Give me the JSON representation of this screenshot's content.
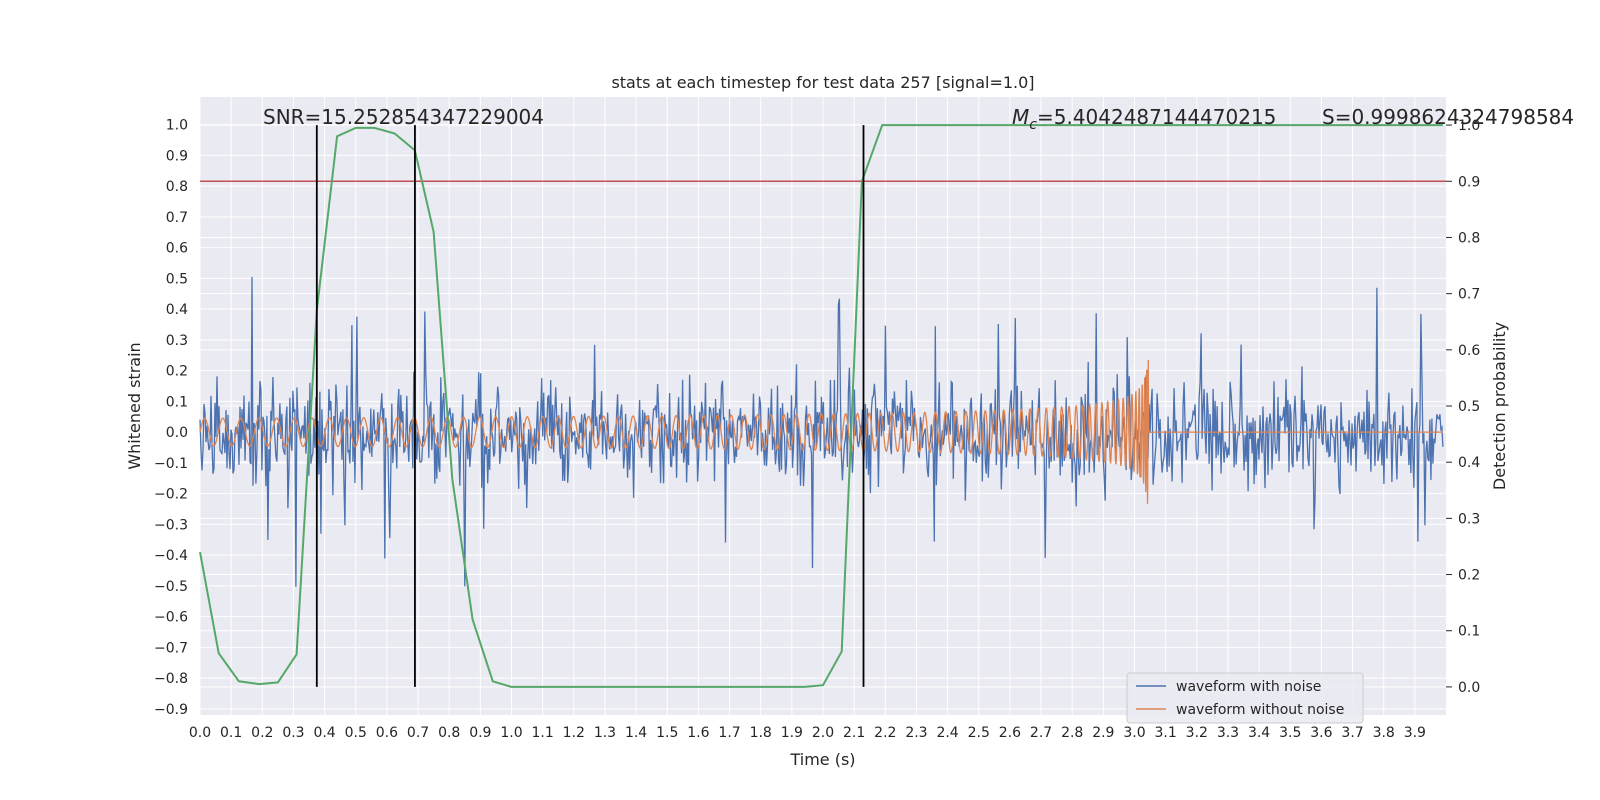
{
  "chart_data": {
    "type": "line",
    "title": "stats at each timestep for test data 257 [signal=1.0]",
    "xlabel": "Time (s)",
    "ylabel": "Whitened strain",
    "y2label": "Detection probability",
    "xlim": [
      0.0,
      4.0
    ],
    "ylim": [
      -0.92,
      1.09
    ],
    "y2lim": [
      -0.05,
      1.05
    ],
    "grid": true,
    "legend_position": "bottom-right",
    "x_ticks": [
      0.0,
      0.1,
      0.2,
      0.3,
      0.4,
      0.5,
      0.6,
      0.7,
      0.8,
      0.9,
      1.0,
      1.1,
      1.2,
      1.3,
      1.4,
      1.5,
      1.6,
      1.7,
      1.8,
      1.9,
      2.0,
      2.1,
      2.2,
      2.3,
      2.4,
      2.5,
      2.6,
      2.7,
      2.8,
      2.9,
      3.0,
      3.1,
      3.2,
      3.3,
      3.4,
      3.5,
      3.6,
      3.7,
      3.8,
      3.9
    ],
    "y_ticks": [
      1.0,
      0.9,
      0.8,
      0.7,
      0.6,
      0.5,
      0.4,
      0.3,
      0.2,
      0.1,
      0.0,
      -0.1,
      -0.2,
      -0.3,
      -0.4,
      -0.5,
      -0.6,
      -0.7,
      -0.8,
      -0.9
    ],
    "y2_ticks": [
      1.0,
      0.9,
      0.8,
      0.7,
      0.6,
      0.5,
      0.4,
      0.3,
      0.2,
      0.1,
      0.0
    ],
    "annotations": {
      "snr": "SNR=15.252854347229004",
      "mc_symbol": "M",
      "mc_subscript": "c",
      "mc_value": "=5.4042487144470215",
      "s_text": "S=0.9998624324798584"
    },
    "threshold_y2": 0.9,
    "vertical_lines_x": [
      0.375,
      0.69,
      2.13
    ],
    "detection_probability": {
      "x": [
        0.0,
        0.06,
        0.125,
        0.19,
        0.25,
        0.31,
        0.375,
        0.44,
        0.5,
        0.56,
        0.625,
        0.69,
        0.75,
        0.81,
        0.875,
        0.94,
        1.0,
        1.94,
        2.0,
        2.06,
        2.125,
        2.19,
        3.99
      ],
      "y": [
        0.24,
        0.06,
        0.01,
        0.005,
        0.008,
        0.058,
        0.67,
        0.98,
        0.995,
        0.995,
        0.985,
        0.955,
        0.81,
        0.37,
        0.12,
        0.01,
        0.0,
        0.0,
        0.003,
        0.063,
        0.9,
        1.0,
        1.0
      ]
    },
    "series": [
      {
        "name": "waveform with noise",
        "color": "#4c72b0"
      },
      {
        "name": "waveform without noise",
        "color": "#dd8452"
      }
    ],
    "threshold_color": "#c44e52",
    "probability_color": "#55a868",
    "vline_color": "#000000"
  }
}
